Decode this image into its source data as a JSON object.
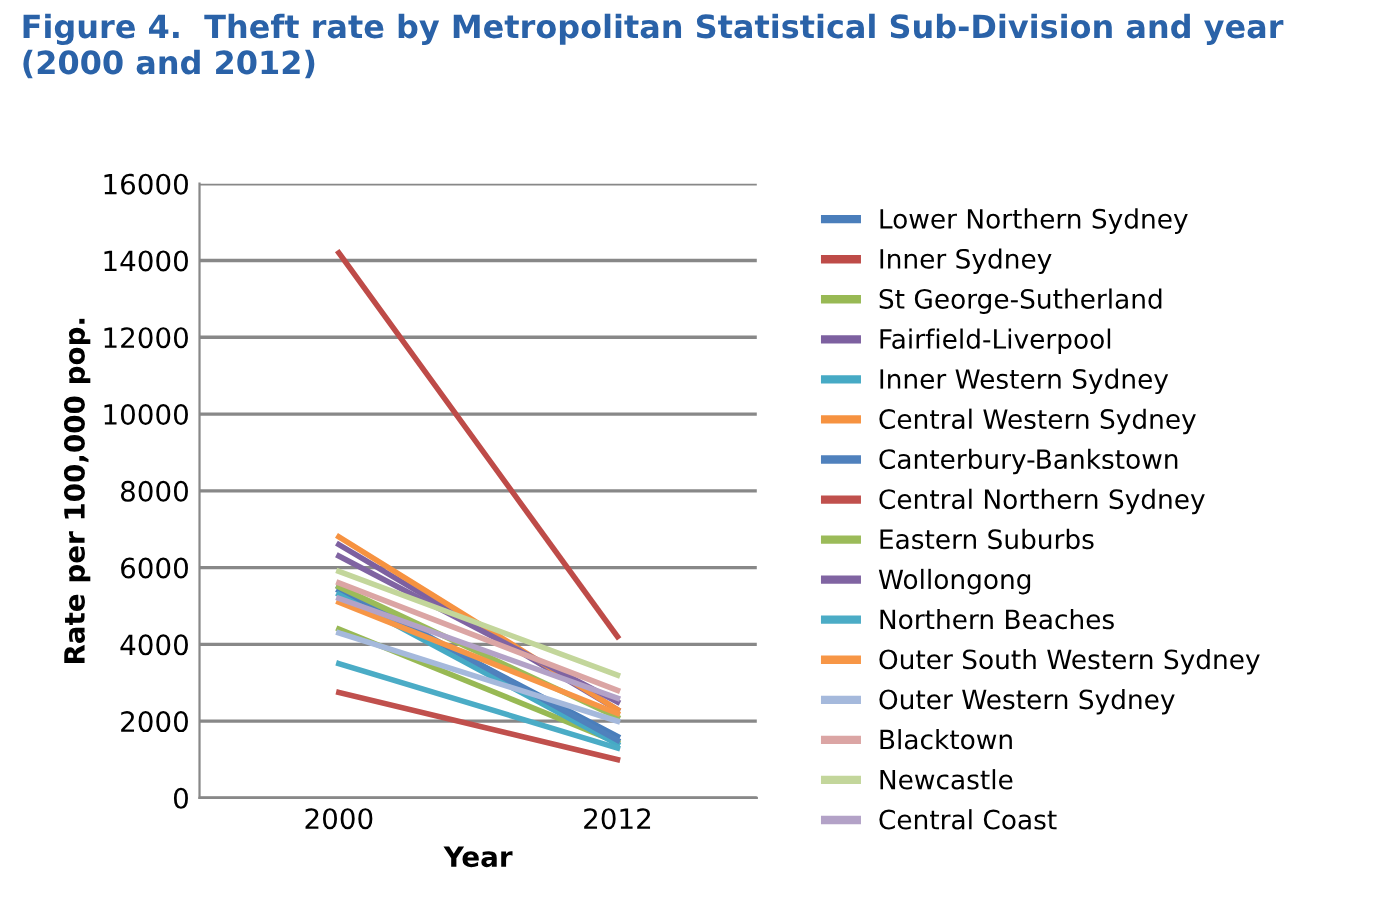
{
  "chart_data": {
    "type": "line",
    "title": "Figure 4.  Theft rate by Metropolitan Statistical Sub-Division and year\n(2000 and 2012)",
    "xlabel": "Year",
    "ylabel": "Rate per 100,000 pop.",
    "categories": [
      "2000",
      "2012"
    ],
    "series": [
      {
        "name": "Lower Northern Sydney",
        "color": "#4a7ebb",
        "values": [
          5400,
          1600
        ]
      },
      {
        "name": "Inner Sydney",
        "color": "#be4b48",
        "values": [
          14200,
          4200
        ]
      },
      {
        "name": "St George-Sutherland",
        "color": "#98b954",
        "values": [
          4400,
          1450
        ]
      },
      {
        "name": "Fairfield-Liverpool",
        "color": "#7d60a0",
        "values": [
          6600,
          2300
        ]
      },
      {
        "name": "Inner Western Sydney",
        "color": "#46aac5",
        "values": [
          5300,
          1400
        ]
      },
      {
        "name": "Central Western Sydney",
        "color": "#f69240",
        "values": [
          6800,
          2300
        ]
      },
      {
        "name": "Canterbury-Bankstown",
        "color": "#4f81bd",
        "values": [
          5500,
          1500
        ]
      },
      {
        "name": "Central Northern Sydney",
        "color": "#c0504d",
        "values": [
          2750,
          1000
        ]
      },
      {
        "name": "Eastern Suburbs",
        "color": "#9bbb59",
        "values": [
          5500,
          2100
        ]
      },
      {
        "name": "Wollongong",
        "color": "#8064a2",
        "values": [
          6300,
          2500
        ]
      },
      {
        "name": "Northern Beaches",
        "color": "#4bacc6",
        "values": [
          3500,
          1300
        ]
      },
      {
        "name": "Outer South Western Sydney",
        "color": "#f79646",
        "values": [
          5100,
          2200
        ]
      },
      {
        "name": "Outer Western Sydney",
        "color": "#a5b9dc",
        "values": [
          4300,
          2000
        ]
      },
      {
        "name": "Blacktown",
        "color": "#dba5a4",
        "values": [
          5600,
          2800
        ]
      },
      {
        "name": "Newcastle",
        "color": "#c3d69b",
        "values": [
          5900,
          3200
        ]
      },
      {
        "name": "Central Coast",
        "color": "#b3a2c7",
        "values": [
          5200,
          2600
        ]
      }
    ],
    "ylim": [
      0,
      16000
    ],
    "yticks": [
      0,
      2000,
      4000,
      6000,
      8000,
      10000,
      12000,
      14000,
      16000
    ],
    "grid": "y",
    "legend": "right",
    "marker": "none",
    "line_style": "solid"
  }
}
